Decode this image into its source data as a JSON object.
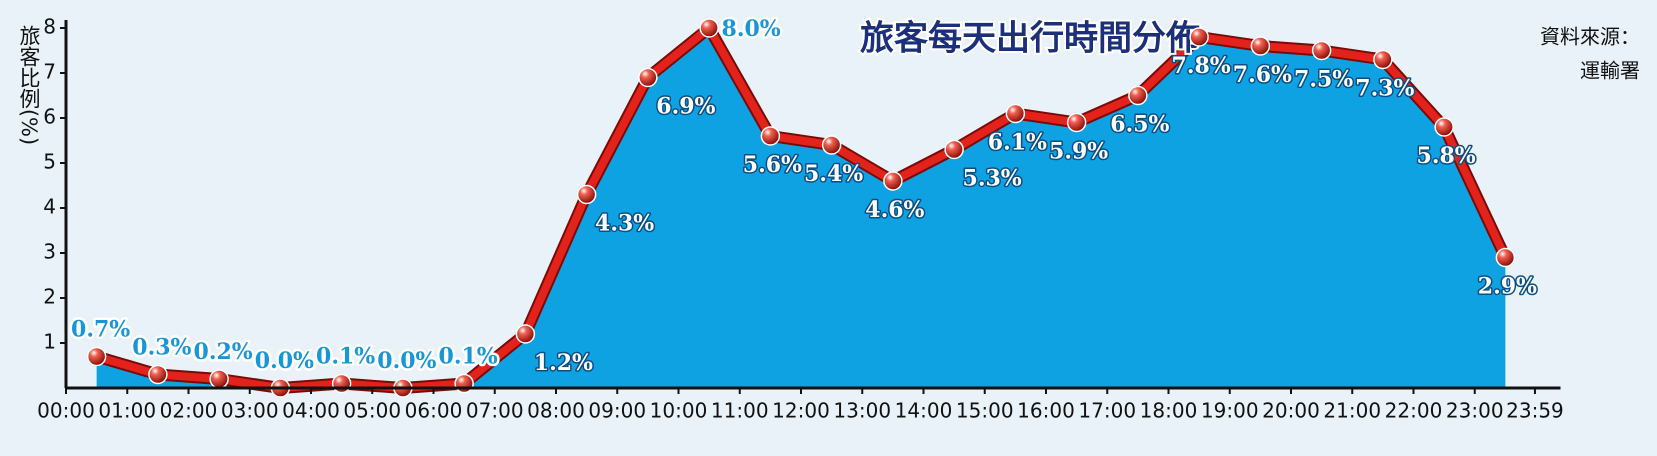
{
  "chart_data": {
    "type": "area",
    "title": "旅客每天出行時間分佈",
    "y_label": "旅客比例(%)",
    "source_label": "資料來源：",
    "source": "運輸署",
    "x": [
      0.5,
      1.5,
      2.5,
      3.5,
      4.5,
      5.5,
      6.5,
      7.5,
      8.5,
      9.5,
      10.5,
      11.5,
      12.5,
      13.5,
      14.5,
      15.5,
      16.5,
      17.5,
      18.5,
      19.5,
      20.5,
      21.5,
      22.5,
      23.5
    ],
    "values": [
      0.7,
      0.3,
      0.2,
      0.0,
      0.1,
      0.0,
      0.1,
      1.2,
      4.3,
      6.9,
      8.0,
      5.6,
      5.4,
      4.6,
      5.3,
      6.1,
      5.9,
      6.5,
      7.8,
      7.6,
      7.5,
      7.3,
      5.8,
      2.9
    ],
    "value_labels": [
      "0.7%",
      "0.3%",
      "0.2%",
      "0.0%",
      "0.1%",
      "0.0%",
      "0.1%",
      "1.2%",
      "4.3%",
      "6.9%",
      "8.0%",
      "5.6%",
      "5.4%",
      "4.6%",
      "5.3%",
      "6.1%",
      "5.9%",
      "6.5%",
      "7.8%",
      "7.6%",
      "7.5%",
      "7.3%",
      "5.8%",
      "2.9%"
    ],
    "color": "#e3231b",
    "area_color": "#0ea2e3",
    "xlim": [
      0,
      24.4
    ],
    "xticks": [
      {
        "value": 0,
        "label": "00:00"
      },
      {
        "value": 1,
        "label": "01:00"
      },
      {
        "value": 2,
        "label": "02:00"
      },
      {
        "value": 3,
        "label": "03:00"
      },
      {
        "value": 4,
        "label": "04:00"
      },
      {
        "value": 5,
        "label": "05:00"
      },
      {
        "value": 6,
        "label": "06:00"
      },
      {
        "value": 7,
        "label": "07:00"
      },
      {
        "value": 8,
        "label": "08:00"
      },
      {
        "value": 9,
        "label": "09:00"
      },
      {
        "value": 10,
        "label": "10:00"
      },
      {
        "value": 11,
        "label": "11:00"
      },
      {
        "value": 12,
        "label": "12:00"
      },
      {
        "value": 13,
        "label": "13:00"
      },
      {
        "value": 14,
        "label": "14:00"
      },
      {
        "value": 15,
        "label": "15:00"
      },
      {
        "value": 16,
        "label": "16:00"
      },
      {
        "value": 17,
        "label": "17:00"
      },
      {
        "value": 18,
        "label": "18:00"
      },
      {
        "value": 19,
        "label": "19:00"
      },
      {
        "value": 20,
        "label": "20:00"
      },
      {
        "value": 21,
        "label": "21:00"
      },
      {
        "value": 22,
        "label": "22:00"
      },
      {
        "value": 23,
        "label": "23:00"
      },
      {
        "value": 23.983,
        "label": "23:59"
      }
    ],
    "ylim": [
      0,
      8
    ],
    "yticks": [
      1,
      2,
      3,
      4,
      5,
      6,
      7,
      8
    ]
  }
}
